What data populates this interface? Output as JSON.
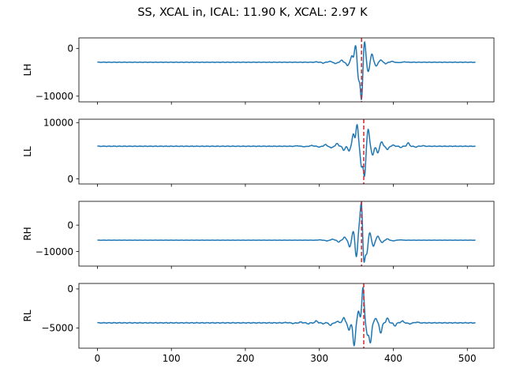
{
  "title": "SS, XCAL in, ICAL: 11.90 K, XCAL: 2.97 K",
  "colors": {
    "series": "#1f77b4",
    "marker": "#d62728",
    "axes": "#000000"
  },
  "chart_data": [
    {
      "type": "line",
      "ylabel": "LH",
      "xlim": [
        -25,
        536
      ],
      "ylim": [
        -11200,
        2200
      ],
      "yticks": [
        {
          "value": 0,
          "label": "0"
        },
        {
          "value": -10000,
          "label": "−10000"
        }
      ],
      "baseline": -2900,
      "vline": 357,
      "osc": [
        {
          "x": 296,
          "a": 80
        },
        {
          "x": 305,
          "a": -180
        },
        {
          "x": 314,
          "a": 200
        },
        {
          "x": 322,
          "a": -300
        },
        {
          "x": 330,
          "a": 420
        },
        {
          "x": 338,
          "a": -700
        },
        {
          "x": 344,
          "a": 1300
        },
        {
          "x": 349,
          "a": 3600
        },
        {
          "x": 353,
          "a": -3500
        },
        {
          "x": 357,
          "a": -7800
        },
        {
          "x": 361,
          "a": 4500
        },
        {
          "x": 366,
          "a": -2000
        },
        {
          "x": 371,
          "a": 1700
        },
        {
          "x": 377,
          "a": -800
        },
        {
          "x": 383,
          "a": 500
        },
        {
          "x": 390,
          "a": -300
        },
        {
          "x": 398,
          "a": 200
        },
        {
          "x": 407,
          "a": -100
        },
        {
          "x": 416,
          "a": 80
        }
      ]
    },
    {
      "type": "line",
      "ylabel": "LL",
      "xlim": [
        -25,
        536
      ],
      "ylim": [
        -900,
        10600
      ],
      "yticks": [
        {
          "value": 10000,
          "label": "10000"
        },
        {
          "value": 0,
          "label": "0"
        }
      ],
      "baseline": 5800,
      "vline": 360,
      "osc": [
        {
          "x": 270,
          "a": 100
        },
        {
          "x": 280,
          "a": -100
        },
        {
          "x": 290,
          "a": 150
        },
        {
          "x": 300,
          "a": -150
        },
        {
          "x": 308,
          "a": 300
        },
        {
          "x": 316,
          "a": -300
        },
        {
          "x": 324,
          "a": 500
        },
        {
          "x": 333,
          "a": -700
        },
        {
          "x": 340,
          "a": -800
        },
        {
          "x": 346,
          "a": 2200
        },
        {
          "x": 351,
          "a": 3800
        },
        {
          "x": 357,
          "a": -3500
        },
        {
          "x": 361,
          "a": -5200
        },
        {
          "x": 366,
          "a": 3000
        },
        {
          "x": 372,
          "a": -1600
        },
        {
          "x": 379,
          "a": -1200
        },
        {
          "x": 384,
          "a": 800
        },
        {
          "x": 392,
          "a": -600
        },
        {
          "x": 400,
          "a": 200
        },
        {
          "x": 410,
          "a": -200
        },
        {
          "x": 420,
          "a": 600
        },
        {
          "x": 430,
          "a": -150
        },
        {
          "x": 440,
          "a": 100
        }
      ]
    },
    {
      "type": "line",
      "ylabel": "RH",
      "xlim": [
        -25,
        536
      ],
      "ylim": [
        -15500,
        9000
      ],
      "yticks": [
        {
          "value": 0,
          "label": "0"
        },
        {
          "value": -10000,
          "label": "−10000"
        }
      ],
      "baseline": -5700,
      "vline": 357,
      "osc": [
        {
          "x": 300,
          "a": 150
        },
        {
          "x": 310,
          "a": -300
        },
        {
          "x": 318,
          "a": 400
        },
        {
          "x": 326,
          "a": -700
        },
        {
          "x": 334,
          "a": 1200
        },
        {
          "x": 341,
          "a": -2500
        },
        {
          "x": 346,
          "a": 3500
        },
        {
          "x": 350,
          "a": -6500
        },
        {
          "x": 354,
          "a": 4500
        },
        {
          "x": 357,
          "a": 14200
        },
        {
          "x": 360,
          "a": -9500
        },
        {
          "x": 364,
          "a": -5000
        },
        {
          "x": 368,
          "a": 3000
        },
        {
          "x": 373,
          "a": -2300
        },
        {
          "x": 379,
          "a": 1500
        },
        {
          "x": 385,
          "a": -900
        },
        {
          "x": 392,
          "a": 500
        },
        {
          "x": 400,
          "a": -300
        },
        {
          "x": 410,
          "a": 150
        }
      ]
    },
    {
      "type": "line",
      "ylabel": "RL",
      "xlim": [
        -25,
        536
      ],
      "ylim": [
        -7600,
        700
      ],
      "yticks": [
        {
          "value": 0,
          "label": "0"
        },
        {
          "value": -5000,
          "label": "−5000"
        }
      ],
      "baseline": -4350,
      "vline": 360,
      "osc": [
        {
          "x": 255,
          "a": 50
        },
        {
          "x": 265,
          "a": -80
        },
        {
          "x": 275,
          "a": 100
        },
        {
          "x": 285,
          "a": -120
        },
        {
          "x": 296,
          "a": 250
        },
        {
          "x": 305,
          "a": -100
        },
        {
          "x": 315,
          "a": -350
        },
        {
          "x": 325,
          "a": 200
        },
        {
          "x": 333,
          "a": 700
        },
        {
          "x": 340,
          "a": -900
        },
        {
          "x": 347,
          "a": -2900
        },
        {
          "x": 353,
          "a": 1500
        },
        {
          "x": 359,
          "a": 4500
        },
        {
          "x": 365,
          "a": -1500
        },
        {
          "x": 369,
          "a": -2500
        },
        {
          "x": 376,
          "a": 600
        },
        {
          "x": 383,
          "a": -1300
        },
        {
          "x": 392,
          "a": 600
        },
        {
          "x": 402,
          "a": -400
        },
        {
          "x": 412,
          "a": 250
        },
        {
          "x": 422,
          "a": -150
        },
        {
          "x": 432,
          "a": 100
        }
      ]
    }
  ],
  "xticks": [
    {
      "value": 0,
      "label": "0"
    },
    {
      "value": 100,
      "label": "100"
    },
    {
      "value": 200,
      "label": "200"
    },
    {
      "value": 300,
      "label": "300"
    },
    {
      "value": 400,
      "label": "400"
    },
    {
      "value": 500,
      "label": "500"
    }
  ],
  "x_data_range": [
    0,
    511
  ]
}
